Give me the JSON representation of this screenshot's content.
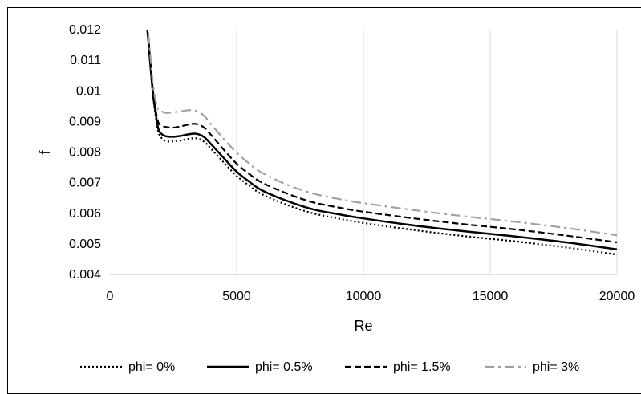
{
  "chart_data": {
    "type": "line",
    "title": "",
    "xlabel": "Re",
    "ylabel": "f",
    "xlim": [
      0,
      20000
    ],
    "ylim": [
      0.004,
      0.012
    ],
    "xticks": [
      "0",
      "5000",
      "10000",
      "15000",
      "20000"
    ],
    "yticks": [
      "0.004",
      "0.005",
      "0.006",
      "0.007",
      "0.008",
      "0.009",
      "0.01",
      "0.011",
      "0.012"
    ],
    "grid": "vertical",
    "legend_position": "bottom",
    "series": [
      {
        "name": "phi= 0%",
        "style": "dotted",
        "color": "#000000",
        "points": [
          [
            1400,
            0.0125
          ],
          [
            1500,
            0.0118
          ],
          [
            1600,
            0.0108
          ],
          [
            1700,
            0.0099
          ],
          [
            1800,
            0.0092
          ],
          [
            1900,
            0.0087
          ],
          [
            2000,
            0.0085
          ],
          [
            2200,
            0.00836
          ],
          [
            2500,
            0.00835
          ],
          [
            2800,
            0.00838
          ],
          [
            3100,
            0.00843
          ],
          [
            3400,
            0.00845
          ],
          [
            3700,
            0.00835
          ],
          [
            4000,
            0.0081
          ],
          [
            4500,
            0.00765
          ],
          [
            5000,
            0.00722
          ],
          [
            5500,
            0.0069
          ],
          [
            6000,
            0.00662
          ],
          [
            7000,
            0.00627
          ],
          [
            8000,
            0.006
          ],
          [
            9000,
            0.00583
          ],
          [
            10000,
            0.00568
          ],
          [
            12000,
            0.00545
          ],
          [
            14000,
            0.00525
          ],
          [
            16000,
            0.00508
          ],
          [
            18000,
            0.00488
          ],
          [
            20000,
            0.00465
          ]
        ]
      },
      {
        "name": "phi= 0.5%",
        "style": "solid",
        "color": "#000000",
        "points": [
          [
            1400,
            0.0125
          ],
          [
            1500,
            0.0118
          ],
          [
            1600,
            0.0108
          ],
          [
            1700,
            0.0099
          ],
          [
            1800,
            0.0093
          ],
          [
            1900,
            0.0088
          ],
          [
            2000,
            0.00862
          ],
          [
            2200,
            0.00852
          ],
          [
            2500,
            0.0085
          ],
          [
            2800,
            0.00853
          ],
          [
            3100,
            0.00858
          ],
          [
            3400,
            0.0086
          ],
          [
            3700,
            0.0085
          ],
          [
            4000,
            0.00825
          ],
          [
            4500,
            0.0078
          ],
          [
            5000,
            0.00736
          ],
          [
            5500,
            0.00703
          ],
          [
            6000,
            0.00675
          ],
          [
            7000,
            0.0064
          ],
          [
            8000,
            0.00613
          ],
          [
            9000,
            0.00597
          ],
          [
            10000,
            0.00583
          ],
          [
            12000,
            0.0056
          ],
          [
            14000,
            0.00541
          ],
          [
            16000,
            0.00524
          ],
          [
            18000,
            0.00505
          ],
          [
            20000,
            0.00482
          ]
        ]
      },
      {
        "name": "phi= 1.5%",
        "style": "dashed",
        "color": "#000000",
        "points": [
          [
            1400,
            0.0125
          ],
          [
            1500,
            0.0119
          ],
          [
            1600,
            0.0109
          ],
          [
            1700,
            0.01
          ],
          [
            1800,
            0.0094
          ],
          [
            1900,
            0.009
          ],
          [
            2000,
            0.00888
          ],
          [
            2200,
            0.00882
          ],
          [
            2500,
            0.0088
          ],
          [
            2800,
            0.00884
          ],
          [
            3100,
            0.0089
          ],
          [
            3400,
            0.00892
          ],
          [
            3700,
            0.00881
          ],
          [
            4000,
            0.00855
          ],
          [
            4500,
            0.00807
          ],
          [
            5000,
            0.00762
          ],
          [
            5500,
            0.00728
          ],
          [
            6000,
            0.007
          ],
          [
            7000,
            0.00664
          ],
          [
            8000,
            0.00636
          ],
          [
            9000,
            0.00619
          ],
          [
            10000,
            0.00605
          ],
          [
            12000,
            0.00583
          ],
          [
            14000,
            0.00564
          ],
          [
            16000,
            0.00547
          ],
          [
            18000,
            0.00527
          ],
          [
            20000,
            0.00505
          ]
        ]
      },
      {
        "name": "phi= 3%",
        "style": "dash-dot",
        "color": "#a0a0a0",
        "points": [
          [
            1400,
            0.0125
          ],
          [
            1500,
            0.012
          ],
          [
            1600,
            0.0111
          ],
          [
            1700,
            0.0102
          ],
          [
            1800,
            0.0097
          ],
          [
            1900,
            0.0094
          ],
          [
            2000,
            0.00935
          ],
          [
            2200,
            0.00928
          ],
          [
            2500,
            0.0093
          ],
          [
            2800,
            0.00933
          ],
          [
            3100,
            0.00937
          ],
          [
            3400,
            0.00935
          ],
          [
            3700,
            0.0092
          ],
          [
            4000,
            0.0089
          ],
          [
            4500,
            0.00842
          ],
          [
            5000,
            0.00798
          ],
          [
            5500,
            0.00762
          ],
          [
            6000,
            0.00732
          ],
          [
            7000,
            0.00693
          ],
          [
            8000,
            0.00665
          ],
          [
            9000,
            0.00647
          ],
          [
            10000,
            0.00633
          ],
          [
            12000,
            0.0061
          ],
          [
            14000,
            0.0059
          ],
          [
            16000,
            0.00572
          ],
          [
            18000,
            0.00552
          ],
          [
            20000,
            0.00528
          ]
        ]
      }
    ]
  }
}
